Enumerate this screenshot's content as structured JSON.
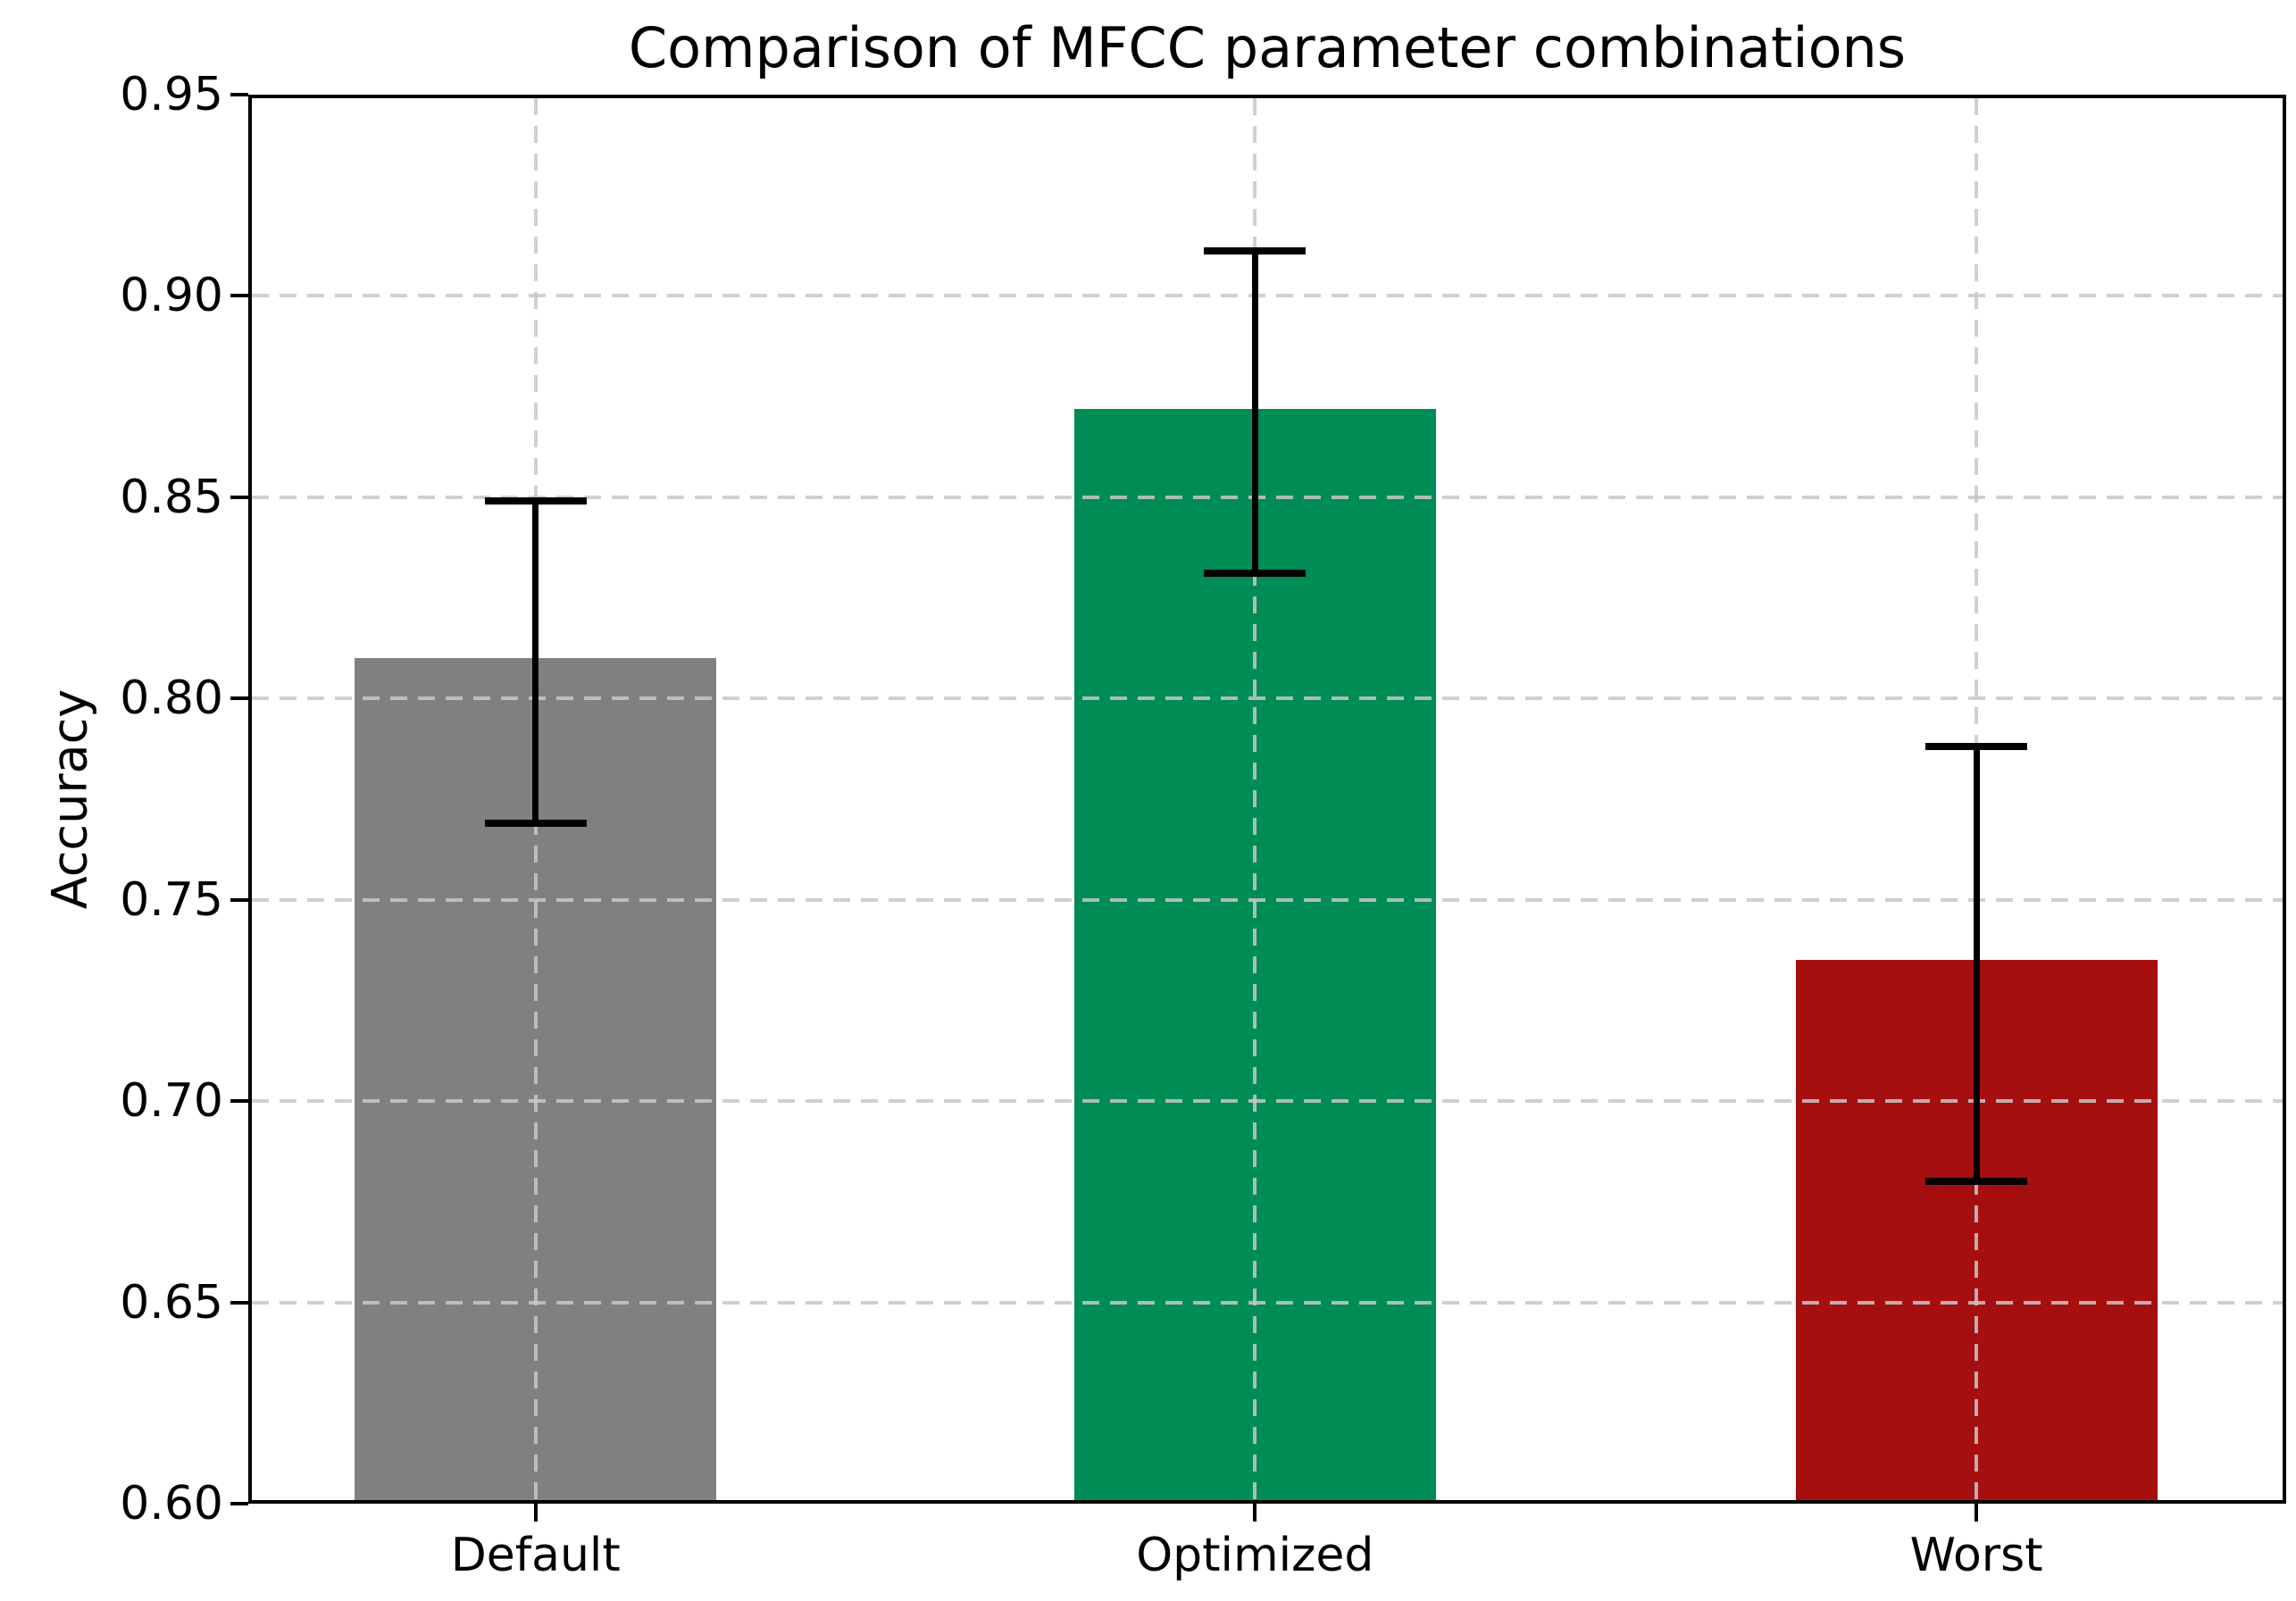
{
  "chart_data": {
    "type": "bar",
    "title": "Comparison of MFCC parameter combinations",
    "xlabel": "",
    "ylabel": "Accuracy",
    "categories": [
      "Default",
      "Optimized",
      "Worst"
    ],
    "values": [
      0.81,
      0.872,
      0.735
    ],
    "errors": [
      0.04,
      0.04,
      0.054
    ],
    "bar_colors": [
      "#808080",
      "#008c55",
      "#a50f0f"
    ],
    "error_color": "#000000",
    "ylim": [
      0.6,
      0.95
    ],
    "yticks": [
      0.6,
      0.65,
      0.7,
      0.75,
      0.8,
      0.85,
      0.9,
      0.95
    ],
    "ytick_labels": [
      "0.60",
      "0.65",
      "0.70",
      "0.75",
      "0.80",
      "0.85",
      "0.90",
      "0.95"
    ],
    "grid": "dashed gridlines on both axes, drawn over bars",
    "legend": "none"
  }
}
